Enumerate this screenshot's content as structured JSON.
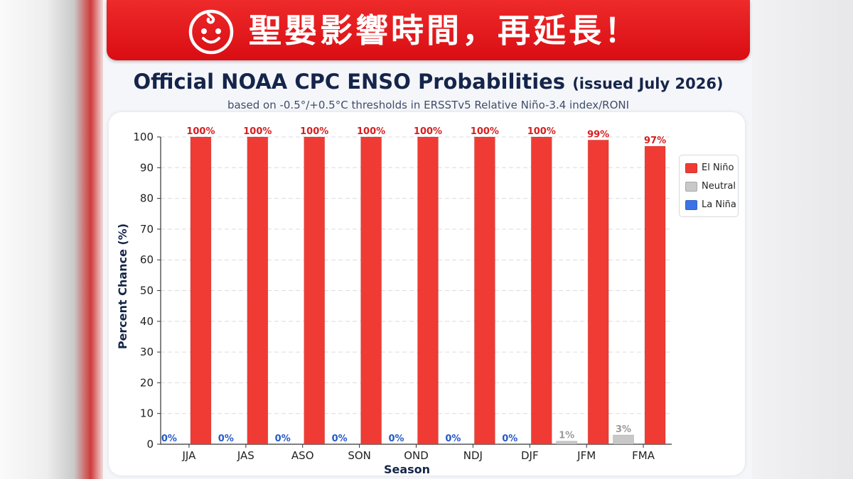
{
  "banner": {
    "text": "聖嬰影響時間，再延長！",
    "icon": "baby-face-icon",
    "color": "#e31b20"
  },
  "chart_data": {
    "type": "bar",
    "title": "Official NOAA CPC ENSO Probabilities",
    "title_suffix": "(issued July 2026)",
    "subtitle": "based on -0.5°/+0.5°C thresholds in ERSSTv5 Relative Niño-3.4 index/RONI",
    "xlabel": "Season",
    "ylabel": "Percent Chance (%)",
    "ylim": [
      0,
      100
    ],
    "yticks": [
      0,
      10,
      20,
      30,
      40,
      50,
      60,
      70,
      80,
      90,
      100
    ],
    "grid": true,
    "legend_position": "right",
    "categories": [
      "JJA",
      "JAS",
      "ASO",
      "SON",
      "OND",
      "NDJ",
      "DJF",
      "JFM",
      "FMA"
    ],
    "series": [
      {
        "name": "La Niña",
        "color": "#3b72e6",
        "values": [
          0,
          0,
          0,
          0,
          0,
          0,
          0,
          null,
          null
        ],
        "labels": [
          "0%",
          "0%",
          "0%",
          "0%",
          "0%",
          "0%",
          "0%",
          "",
          ""
        ],
        "label_color": "#2559c7"
      },
      {
        "name": "Neutral",
        "color": "#c8c8c8",
        "values": [
          null,
          null,
          null,
          null,
          null,
          null,
          null,
          1,
          3
        ],
        "labels": [
          "",
          "",
          "",
          "",
          "",
          "",
          "",
          "1%",
          "3%"
        ],
        "label_color": "#9a9a9a"
      },
      {
        "name": "El Niño",
        "color": "#f03b35",
        "values": [
          100,
          100,
          100,
          100,
          100,
          100,
          100,
          99,
          97
        ],
        "labels": [
          "100%",
          "100%",
          "100%",
          "100%",
          "100%",
          "100%",
          "100%",
          "99%",
          "97%"
        ],
        "label_color": "#d61f1f"
      }
    ],
    "legend": [
      "El Niño",
      "Neutral",
      "La Niña"
    ]
  }
}
